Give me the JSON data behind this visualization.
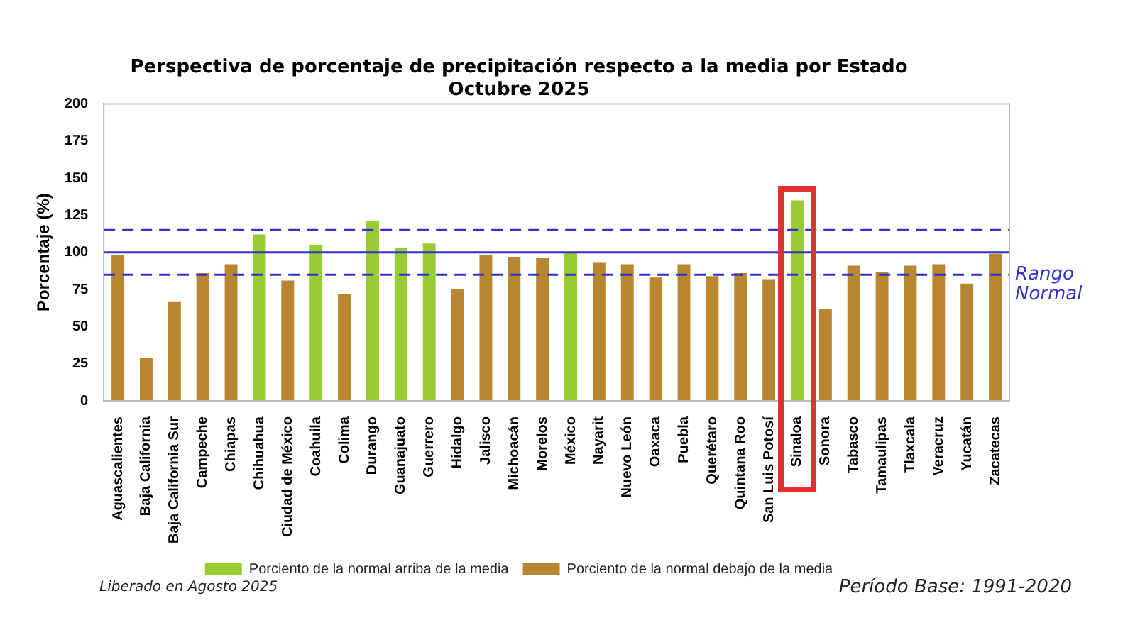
{
  "chart_data": {
    "type": "bar",
    "title": "Perspectiva de porcentaje de precipitación respecto a la media por Estado\nOctubre 2025",
    "ylabel": "Porcentaje (%)",
    "categories": [
      "Aguascalientes",
      "Baja California",
      "Baja California Sur",
      "Campeche",
      "Chiapas",
      "Chihuahua",
      "Ciudad de México",
      "Coahuila",
      "Colima",
      "Durango",
      "Guanajuato",
      "Guerrero",
      "Hidalgo",
      "Jalisco",
      "Michoacán",
      "Morelos",
      "México",
      "Nayarit",
      "Nuevo León",
      "Oaxaca",
      "Puebla",
      "Querétaro",
      "Quintana Roo",
      "San Luis Potosí",
      "Sinaloa",
      "Sonora",
      "Tabasco",
      "Tamaulipas",
      "Tlaxcala",
      "Veracruz",
      "Yucatán",
      "Zacatecas"
    ],
    "series": [
      {
        "name": "Porciento de la normal arriba de la media",
        "color": "#99cc33",
        "values": [
          null,
          null,
          null,
          null,
          null,
          112,
          null,
          105,
          null,
          121,
          103,
          106,
          null,
          null,
          null,
          null,
          100,
          null,
          null,
          null,
          null,
          null,
          null,
          null,
          135,
          null,
          null,
          null,
          null,
          null,
          null,
          null
        ]
      },
      {
        "name": "Porciento de la normal debajo de la media",
        "color": "#b8862f",
        "values": [
          98,
          29,
          67,
          86,
          92,
          null,
          81,
          null,
          72,
          null,
          null,
          null,
          75,
          98,
          97,
          96,
          null,
          93,
          92,
          83,
          92,
          84,
          86,
          82,
          null,
          62,
          91,
          87,
          91,
          92,
          79,
          99
        ]
      }
    ],
    "ylim": [
      0,
      200
    ],
    "yticks": [
      0,
      25,
      50,
      75,
      100,
      125,
      150,
      175,
      200
    ],
    "grid": false,
    "legend": "bottom",
    "ref_lines": [
      {
        "axis": "y",
        "value": 100,
        "color": "#3333cc",
        "line_style": "solid"
      },
      {
        "axis": "y",
        "value": 115,
        "color": "#3333cc",
        "line_style": "dashed"
      },
      {
        "axis": "y",
        "value": 85,
        "color": "#3333cc",
        "line_style": "dashed",
        "label": "Rango\nNormal"
      }
    ],
    "annotations": [
      "Liberado en Agosto 2025",
      "Período Base: 1991-2020"
    ]
  }
}
